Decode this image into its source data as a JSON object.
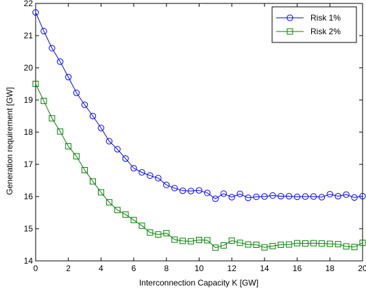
{
  "chart_data": {
    "type": "line",
    "title": "",
    "xlabel": "Interconnection Capacity K [GW]",
    "ylabel": "Generation requirement  [GW]",
    "xlim": [
      0,
      20
    ],
    "ylim": [
      14,
      22
    ],
    "xticks": [
      0,
      2,
      4,
      6,
      8,
      10,
      12,
      14,
      16,
      18,
      20
    ],
    "yticks": [
      14,
      15,
      16,
      17,
      18,
      19,
      20,
      21,
      22
    ],
    "grid": false,
    "legend_position": "top-right",
    "x": [
      0,
      0.5,
      1,
      1.5,
      2,
      2.5,
      3,
      3.5,
      4,
      4.5,
      5,
      5.5,
      6,
      6.5,
      7,
      7.5,
      8,
      8.5,
      9,
      9.5,
      10,
      10.5,
      11,
      11.5,
      12,
      12.5,
      13,
      13.5,
      14,
      14.5,
      15,
      15.5,
      16,
      16.5,
      17,
      17.5,
      18,
      18.5,
      19,
      19.5,
      20
    ],
    "series": [
      {
        "name": "Risk 1%",
        "color": "#0000ff",
        "marker": "circle",
        "values": [
          21.72,
          21.14,
          20.61,
          20.19,
          19.71,
          19.22,
          18.85,
          18.5,
          18.13,
          17.72,
          17.47,
          17.18,
          16.88,
          16.75,
          16.65,
          16.57,
          16.36,
          16.26,
          16.18,
          16.17,
          16.19,
          16.11,
          15.93,
          16.09,
          15.98,
          16.08,
          15.96,
          15.99,
          16.0,
          16.03,
          16.01,
          16.01,
          15.99,
          16.0,
          16.0,
          15.98,
          16.07,
          16.01,
          16.06,
          15.97,
          16.01
        ]
      },
      {
        "name": "Risk 2%",
        "color": "#008000",
        "marker": "square",
        "values": [
          19.5,
          18.97,
          18.43,
          18.02,
          17.56,
          17.25,
          16.82,
          16.47,
          16.13,
          15.82,
          15.58,
          15.44,
          15.27,
          15.09,
          14.88,
          14.82,
          14.86,
          14.66,
          14.62,
          14.61,
          14.65,
          14.64,
          14.41,
          14.48,
          14.63,
          14.56,
          14.51,
          14.5,
          14.42,
          14.46,
          14.5,
          14.51,
          14.55,
          14.54,
          14.55,
          14.54,
          14.53,
          14.52,
          14.45,
          14.43,
          14.56
        ]
      }
    ]
  }
}
